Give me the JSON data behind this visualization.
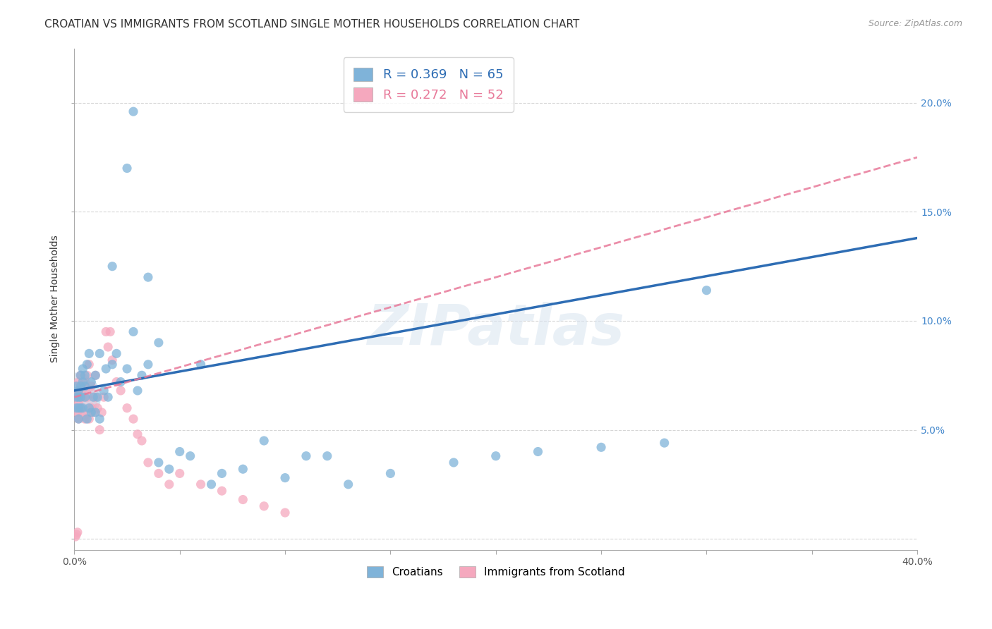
{
  "title": "CROATIAN VS IMMIGRANTS FROM SCOTLAND SINGLE MOTHER HOUSEHOLDS CORRELATION CHART",
  "source": "Source: ZipAtlas.com",
  "ylabel": "Single Mother Households",
  "xlim": [
    0.0,
    0.4
  ],
  "ylim": [
    -0.005,
    0.225
  ],
  "xticks": [
    0.0,
    0.05,
    0.1,
    0.15,
    0.2,
    0.25,
    0.3,
    0.35,
    0.4
  ],
  "yticks": [
    0.0,
    0.05,
    0.1,
    0.15,
    0.2
  ],
  "right_yticklabels": [
    "",
    "5.0%",
    "10.0%",
    "15.0%",
    "20.0%"
  ],
  "legend_blue_label": "Croatians",
  "legend_pink_label": "Immigrants from Scotland",
  "blue_R": 0.369,
  "blue_N": 65,
  "pink_R": 0.272,
  "pink_N": 52,
  "blue_color": "#7fb3d9",
  "pink_color": "#f5a8be",
  "blue_line_color": "#2e6db4",
  "pink_line_color": "#e87a9a",
  "watermark": "ZIPatlas",
  "blue_line_x0": 0.0,
  "blue_line_y0": 0.068,
  "blue_line_x1": 0.4,
  "blue_line_y1": 0.138,
  "pink_line_x0": 0.0,
  "pink_line_y0": 0.065,
  "pink_line_x1": 0.4,
  "pink_line_y1": 0.175,
  "blue_scatter_x": [
    0.001,
    0.001,
    0.001,
    0.002,
    0.002,
    0.002,
    0.002,
    0.003,
    0.003,
    0.003,
    0.003,
    0.004,
    0.004,
    0.004,
    0.005,
    0.005,
    0.005,
    0.006,
    0.006,
    0.007,
    0.007,
    0.008,
    0.008,
    0.009,
    0.01,
    0.01,
    0.011,
    0.012,
    0.012,
    0.014,
    0.015,
    0.016,
    0.018,
    0.02,
    0.022,
    0.025,
    0.028,
    0.03,
    0.032,
    0.035,
    0.04,
    0.04,
    0.045,
    0.05,
    0.055,
    0.065,
    0.07,
    0.08,
    0.09,
    0.1,
    0.11,
    0.12,
    0.13,
    0.15,
    0.18,
    0.2,
    0.22,
    0.25,
    0.28,
    0.3,
    0.018,
    0.025,
    0.028,
    0.035,
    0.06
  ],
  "blue_scatter_y": [
    0.06,
    0.065,
    0.07,
    0.055,
    0.06,
    0.065,
    0.068,
    0.06,
    0.065,
    0.07,
    0.075,
    0.06,
    0.072,
    0.078,
    0.065,
    0.07,
    0.075,
    0.055,
    0.08,
    0.06,
    0.085,
    0.058,
    0.072,
    0.065,
    0.058,
    0.075,
    0.065,
    0.055,
    0.085,
    0.068,
    0.078,
    0.065,
    0.08,
    0.085,
    0.072,
    0.078,
    0.095,
    0.068,
    0.075,
    0.08,
    0.09,
    0.035,
    0.032,
    0.04,
    0.038,
    0.025,
    0.03,
    0.032,
    0.045,
    0.028,
    0.038,
    0.038,
    0.025,
    0.03,
    0.035,
    0.038,
    0.04,
    0.042,
    0.044,
    0.114,
    0.125,
    0.17,
    0.196,
    0.12,
    0.08
  ],
  "pink_scatter_x": [
    0.0005,
    0.001,
    0.001,
    0.001,
    0.0015,
    0.0015,
    0.002,
    0.002,
    0.002,
    0.002,
    0.003,
    0.003,
    0.003,
    0.003,
    0.004,
    0.004,
    0.004,
    0.005,
    0.005,
    0.005,
    0.006,
    0.006,
    0.007,
    0.007,
    0.008,
    0.008,
    0.009,
    0.01,
    0.01,
    0.011,
    0.012,
    0.013,
    0.014,
    0.015,
    0.016,
    0.017,
    0.018,
    0.02,
    0.022,
    0.025,
    0.028,
    0.03,
    0.032,
    0.035,
    0.04,
    0.045,
    0.05,
    0.06,
    0.07,
    0.08,
    0.09,
    0.1
  ],
  "pink_scatter_y": [
    0.001,
    0.06,
    0.065,
    0.002,
    0.003,
    0.058,
    0.062,
    0.067,
    0.072,
    0.055,
    0.06,
    0.065,
    0.07,
    0.075,
    0.058,
    0.065,
    0.07,
    0.055,
    0.068,
    0.072,
    0.065,
    0.075,
    0.055,
    0.08,
    0.06,
    0.07,
    0.058,
    0.065,
    0.075,
    0.06,
    0.05,
    0.058,
    0.065,
    0.095,
    0.088,
    0.095,
    0.082,
    0.072,
    0.068,
    0.06,
    0.055,
    0.048,
    0.045,
    0.035,
    0.03,
    0.025,
    0.03,
    0.025,
    0.022,
    0.018,
    0.015,
    0.012
  ],
  "background_color": "#ffffff",
  "title_fontsize": 11,
  "axis_label_fontsize": 10,
  "tick_fontsize": 10,
  "legend_fontsize": 13,
  "source_fontsize": 9
}
